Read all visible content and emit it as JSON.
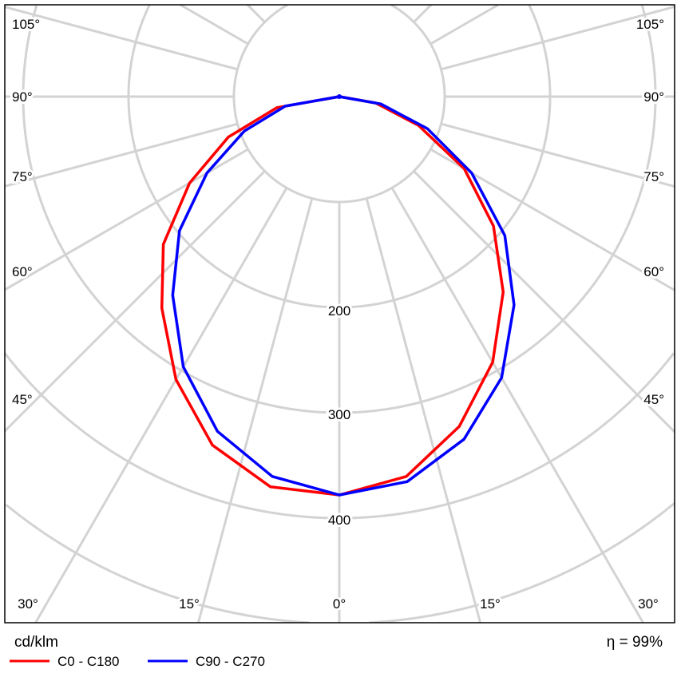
{
  "chart_data": {
    "type": "polar",
    "unit_label": "cd/klm",
    "efficiency_label": "η = 99%",
    "radial_ticks": [
      100,
      200,
      300,
      400,
      500,
      600
    ],
    "radial_tick_labels": [
      "200",
      "300",
      "400"
    ],
    "angle_step_deg": 15,
    "angle_labels_side": [
      "105°",
      "90°",
      "75°",
      "60°",
      "45°"
    ],
    "angle_labels_bottom": [
      "30°",
      "15°",
      "0°",
      "15°",
      "30°"
    ],
    "angles_deg": [
      -90,
      -80,
      -70,
      -60,
      -50,
      -40,
      -30,
      -20,
      -10,
      0,
      10,
      20,
      30,
      40,
      50,
      60,
      70,
      80,
      90
    ],
    "series": [
      {
        "name": "C0 - C180",
        "color": "#ff0000",
        "values": [
          0,
          60,
          112,
          164,
          218,
          262,
          310,
          352,
          376,
          378,
          366,
          333,
          291,
          242,
          191,
          137,
          80,
          35,
          0
        ]
      },
      {
        "name": "C90 - C270",
        "color": "#0000ff",
        "values": [
          0,
          52,
          96,
          145,
          198,
          246,
          296,
          338,
          366,
          378,
          371,
          346,
          308,
          258,
          205,
          145,
          89,
          40,
          0
        ]
      }
    ],
    "grid": true,
    "grid_color": "#d3d3d3",
    "legend_placement": "bottom-left"
  }
}
